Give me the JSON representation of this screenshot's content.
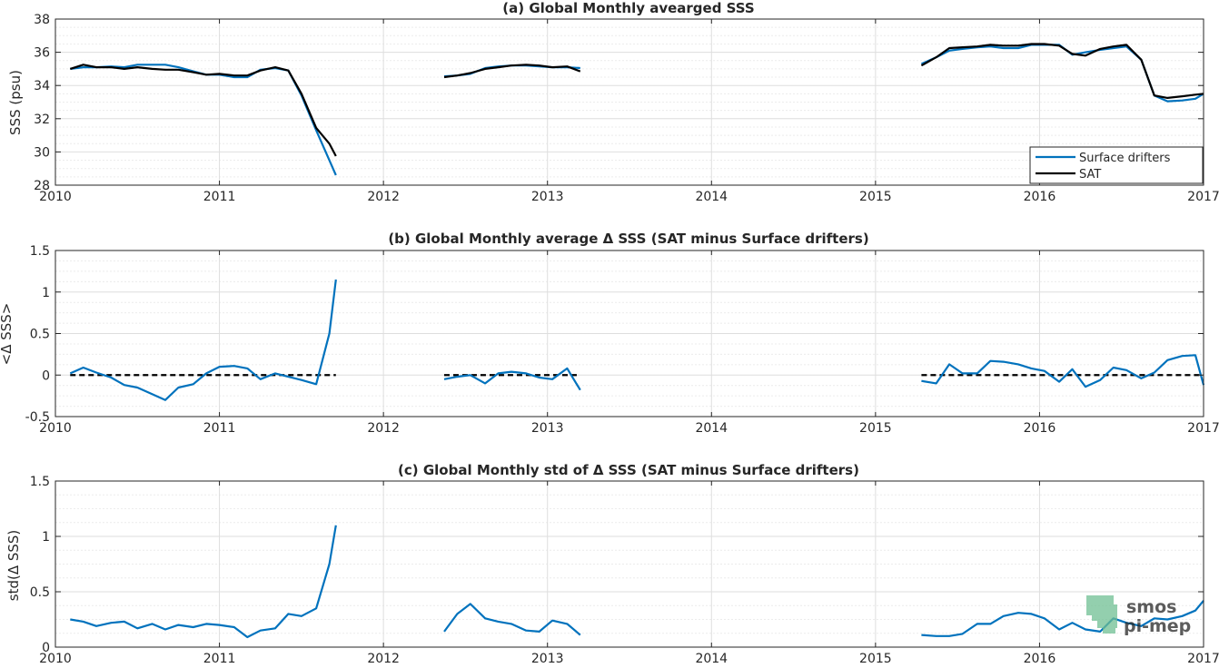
{
  "watermark": {
    "line1": "smos",
    "line2": "pi-mep",
    "color": "#6fbf93"
  },
  "colors": {
    "drifters": "#0072bd",
    "sat": "#000000",
    "zero": "#000000"
  },
  "chart_data": [
    {
      "type": "line",
      "title": "(a) Global Monthly avearged SSS",
      "xlabel": "",
      "ylabel": "SSS (psu)",
      "xlim": [
        2010,
        2017
      ],
      "ylim": [
        28,
        38
      ],
      "yticks": [
        28,
        30,
        32,
        34,
        36,
        38
      ],
      "ytick_labels": [
        "28",
        "30",
        "32",
        "34",
        "36",
        "38"
      ],
      "xticks": [
        2010,
        2011,
        2012,
        2013,
        2014,
        2015,
        2016,
        2017
      ],
      "xtick_labels": [
        "2010",
        "2011",
        "2012",
        "2013",
        "2014",
        "2015",
        "2016",
        "2017"
      ],
      "grid": true,
      "legend": {
        "placement": "bottom-right",
        "entries": [
          "Surface drifters",
          "SAT"
        ]
      },
      "series": [
        {
          "name": "Surface drifters",
          "color": "#0072bd",
          "segments": [
            {
              "x": [
                2010.09,
                2010.17,
                2010.25,
                2010.34,
                2010.42,
                2010.5,
                2010.59,
                2010.67,
                2010.75,
                2010.84,
                2010.92,
                2011.0,
                2011.09,
                2011.17,
                2011.25,
                2011.34,
                2011.42,
                2011.5,
                2011.59,
                2011.67,
                2011.71
              ],
              "y": [
                35.0,
                35.1,
                35.1,
                35.15,
                35.1,
                35.25,
                35.25,
                35.25,
                35.1,
                34.85,
                34.65,
                34.65,
                34.5,
                34.5,
                34.95,
                35.05,
                34.9,
                33.4,
                31.3,
                29.5,
                28.6
              ]
            },
            {
              "x": [
                2012.37,
                2012.45,
                2012.53,
                2012.62,
                2012.7,
                2012.78,
                2012.87,
                2012.95,
                2013.03,
                2013.12,
                2013.2
              ],
              "y": [
                34.55,
                34.6,
                34.7,
                35.05,
                35.15,
                35.2,
                35.2,
                35.15,
                35.1,
                35.1,
                35.05
              ]
            },
            {
              "x": [
                2015.28,
                2015.37,
                2015.45,
                2015.53,
                2015.62,
                2015.7,
                2015.78,
                2015.87,
                2015.95,
                2016.03,
                2016.12,
                2016.2,
                2016.28,
                2016.37,
                2016.45,
                2016.53,
                2016.62,
                2016.7,
                2016.78,
                2016.87,
                2016.95,
                2017.0
              ],
              "y": [
                35.3,
                35.7,
                36.1,
                36.2,
                36.3,
                36.35,
                36.25,
                36.25,
                36.45,
                36.45,
                36.45,
                35.85,
                36.0,
                36.15,
                36.25,
                36.35,
                35.55,
                33.4,
                33.05,
                33.1,
                33.2,
                33.5
              ]
            }
          ]
        },
        {
          "name": "SAT",
          "color": "#000000",
          "segments": [
            {
              "x": [
                2010.09,
                2010.17,
                2010.25,
                2010.34,
                2010.42,
                2010.5,
                2010.59,
                2010.67,
                2010.75,
                2010.84,
                2010.92,
                2011.0,
                2011.09,
                2011.17,
                2011.25,
                2011.34,
                2011.42,
                2011.5,
                2011.59,
                2011.67,
                2011.71
              ],
              "y": [
                35.0,
                35.25,
                35.1,
                35.1,
                35.0,
                35.1,
                35.0,
                34.95,
                34.95,
                34.8,
                34.65,
                34.7,
                34.6,
                34.6,
                34.9,
                35.1,
                34.9,
                33.5,
                31.45,
                30.5,
                29.75
              ]
            },
            {
              "x": [
                2012.37,
                2012.45,
                2012.53,
                2012.62,
                2012.7,
                2012.78,
                2012.87,
                2012.95,
                2013.03,
                2013.12,
                2013.2
              ],
              "y": [
                34.5,
                34.6,
                34.75,
                35.0,
                35.1,
                35.2,
                35.25,
                35.2,
                35.1,
                35.15,
                34.85
              ]
            },
            {
              "x": [
                2015.28,
                2015.37,
                2015.45,
                2015.53,
                2015.62,
                2015.7,
                2015.78,
                2015.87,
                2015.95,
                2016.03,
                2016.12,
                2016.2,
                2016.28,
                2016.37,
                2016.45,
                2016.53,
                2016.62,
                2016.7,
                2016.78,
                2016.87,
                2016.95,
                2017.0
              ],
              "y": [
                35.2,
                35.7,
                36.25,
                36.3,
                36.35,
                36.45,
                36.4,
                36.4,
                36.5,
                36.5,
                36.4,
                35.9,
                35.8,
                36.2,
                36.35,
                36.45,
                35.55,
                33.4,
                33.25,
                33.35,
                33.45,
                33.5
              ]
            }
          ]
        }
      ]
    },
    {
      "type": "line",
      "title": "(b) Global Monthly average Δ SSS (SAT minus Surface drifters)",
      "xlabel": "",
      "ylabel": "<Δ SSS>",
      "xlim": [
        2010,
        2017
      ],
      "ylim": [
        -0.5,
        1.5
      ],
      "yticks": [
        -0.5,
        0,
        0.5,
        1,
        1.5
      ],
      "ytick_labels": [
        "-0.5",
        "0",
        "0.5",
        "1",
        "1.5"
      ],
      "xticks": [
        2010,
        2011,
        2012,
        2013,
        2014,
        2015,
        2016,
        2017
      ],
      "xtick_labels": [
        "2010",
        "2011",
        "2012",
        "2013",
        "2014",
        "2015",
        "2016",
        "2017"
      ],
      "grid": true,
      "zero_line_segments": [
        [
          2010.09,
          2011.71
        ],
        [
          2012.37,
          2013.2
        ],
        [
          2015.28,
          2017.0
        ]
      ],
      "series": [
        {
          "color": "#0072bd",
          "segments": [
            {
              "x": [
                2010.09,
                2010.17,
                2010.25,
                2010.34,
                2010.42,
                2010.5,
                2010.59,
                2010.67,
                2010.75,
                2010.84,
                2010.92,
                2011.0,
                2011.09,
                2011.17,
                2011.25,
                2011.34,
                2011.42,
                2011.5,
                2011.59,
                2011.67,
                2011.71
              ],
              "y": [
                0.02,
                0.09,
                0.03,
                -0.03,
                -0.12,
                -0.15,
                -0.23,
                -0.3,
                -0.15,
                -0.11,
                0.02,
                0.1,
                0.11,
                0.08,
                -0.05,
                0.02,
                -0.02,
                -0.06,
                -0.11,
                0.5,
                1.15
              ]
            },
            {
              "x": [
                2012.37,
                2012.45,
                2012.53,
                2012.62,
                2012.7,
                2012.78,
                2012.87,
                2012.95,
                2013.03,
                2013.12,
                2013.2
              ],
              "y": [
                -0.05,
                -0.02,
                0.0,
                -0.1,
                0.02,
                0.04,
                0.02,
                -0.03,
                -0.05,
                0.08,
                -0.18
              ]
            },
            {
              "x": [
                2015.28,
                2015.37,
                2015.45,
                2015.53,
                2015.62,
                2015.7,
                2015.78,
                2015.87,
                2015.95,
                2016.03,
                2016.12,
                2016.2,
                2016.28,
                2016.37,
                2016.45,
                2016.53,
                2016.62,
                2016.7,
                2016.78,
                2016.87,
                2016.95,
                2017.0
              ],
              "y": [
                -0.07,
                -0.1,
                0.13,
                0.02,
                0.02,
                0.17,
                0.16,
                0.13,
                0.08,
                0.05,
                -0.08,
                0.07,
                -0.14,
                -0.06,
                0.09,
                0.06,
                -0.04,
                0.03,
                0.18,
                0.23,
                0.24,
                -0.12
              ]
            }
          ]
        }
      ]
    },
    {
      "type": "line",
      "title": "(c) Global Monthly std of Δ SSS (SAT minus Surface drifters)",
      "xlabel": "",
      "ylabel": "std(Δ SSS)",
      "xlim": [
        2010,
        2017
      ],
      "ylim": [
        0,
        1.5
      ],
      "yticks": [
        0,
        0.5,
        1,
        1.5
      ],
      "ytick_labels": [
        "0",
        "0.5",
        "1",
        "1.5"
      ],
      "xticks": [
        2010,
        2011,
        2012,
        2013,
        2014,
        2015,
        2016,
        2017
      ],
      "xtick_labels": [
        "2010",
        "2011",
        "2012",
        "2013",
        "2014",
        "2015",
        "2016",
        "2017"
      ],
      "grid": true,
      "series": [
        {
          "color": "#0072bd",
          "segments": [
            {
              "x": [
                2010.09,
                2010.17,
                2010.25,
                2010.34,
                2010.42,
                2010.5,
                2010.59,
                2010.67,
                2010.75,
                2010.84,
                2010.92,
                2011.0,
                2011.09,
                2011.17,
                2011.25,
                2011.34,
                2011.42,
                2011.5,
                2011.59,
                2011.67,
                2011.71
              ],
              "y": [
                0.25,
                0.23,
                0.19,
                0.22,
                0.23,
                0.17,
                0.21,
                0.16,
                0.2,
                0.18,
                0.21,
                0.2,
                0.18,
                0.09,
                0.15,
                0.17,
                0.3,
                0.28,
                0.35,
                0.75,
                1.1
              ]
            },
            {
              "x": [
                2012.37,
                2012.45,
                2012.53,
                2012.62,
                2012.7,
                2012.78,
                2012.87,
                2012.95,
                2013.03,
                2013.12,
                2013.2
              ],
              "y": [
                0.14,
                0.3,
                0.39,
                0.26,
                0.23,
                0.21,
                0.15,
                0.14,
                0.24,
                0.21,
                0.11
              ]
            },
            {
              "x": [
                2015.28,
                2015.37,
                2015.45,
                2015.53,
                2015.62,
                2015.7,
                2015.78,
                2015.87,
                2015.95,
                2016.03,
                2016.12,
                2016.2,
                2016.28,
                2016.37,
                2016.45,
                2016.53,
                2016.62,
                2016.7,
                2016.78,
                2016.87,
                2016.95,
                2017.0
              ],
              "y": [
                0.11,
                0.1,
                0.1,
                0.12,
                0.21,
                0.21,
                0.28,
                0.31,
                0.3,
                0.26,
                0.16,
                0.22,
                0.16,
                0.14,
                0.26,
                0.22,
                0.19,
                0.26,
                0.25,
                0.28,
                0.33,
                0.42
              ]
            }
          ]
        }
      ]
    }
  ]
}
